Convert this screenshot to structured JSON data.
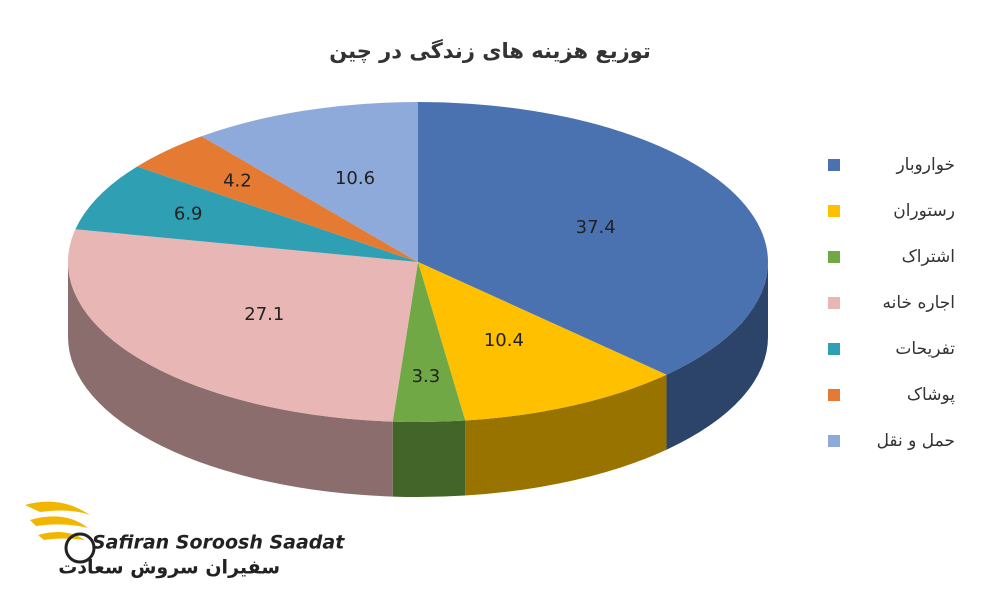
{
  "chart_data": {
    "type": "pie3d",
    "title": "توزیع هزینه های زندگی در چین",
    "categories": [
      "خواروبار",
      "رستوران",
      "اشتراک",
      "اجاره خانه",
      "تفریحات",
      "پوشاک",
      "حمل و نقل"
    ],
    "values": [
      37.4,
      10.4,
      3.3,
      27.1,
      6.9,
      4.2,
      10.6
    ],
    "colors": [
      "#4a72b0",
      "#ffc000",
      "#70a845",
      "#e8b6b5",
      "#2f9fb3",
      "#e57b32",
      "#8eaadb"
    ],
    "legend": "right"
  },
  "brand": {
    "name_en": "Safiran Soroosh Saadat",
    "name_fa": "سفیران سروش سعادت"
  }
}
